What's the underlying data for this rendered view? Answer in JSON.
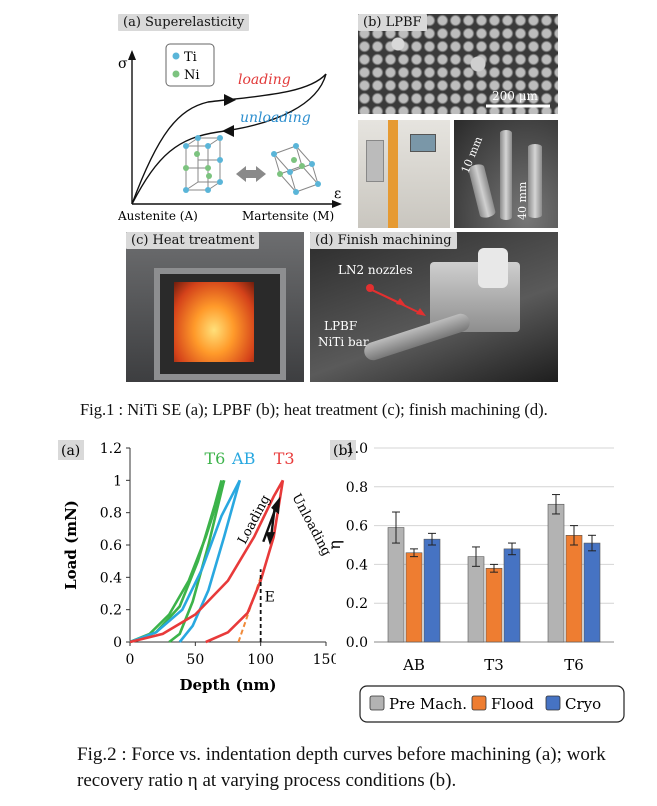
{
  "fig1": {
    "a": {
      "label": "(a) Superelasticity",
      "y_symbol": "σ",
      "x_symbol": "ε",
      "legend_ti": "Ti",
      "legend_ni": "Ni",
      "loading": "loading",
      "unloading": "unloading",
      "austenite": "Austenite (A)",
      "martensite": "Martensite (M)"
    },
    "b": {
      "label": "(b) LPBF",
      "scale": "200 μm",
      "dim1": "10 mm",
      "dim2": "40 mm"
    },
    "c": {
      "label": "(c) Heat treatment"
    },
    "d": {
      "label": "(d) Finish machining",
      "nozzles": "LN2 nozzles",
      "bar_line1": "LPBF",
      "bar_line2": "NiTi bar"
    },
    "caption": "Fig.1 : NiTi SE (a); LPBF (b); heat treatment (c); finish machining (d)."
  },
  "fig2": {
    "caption_line1": "Fig.2 : Force vs. indentation depth curves before machining (a); work",
    "caption_line2": "recovery ratio η at varying process conditions (b)."
  },
  "chart_data": [
    {
      "type": "line",
      "panel_label": "(a)",
      "xlabel": "Depth (nm)",
      "ylabel": "Load (mN)",
      "xlim": [
        0,
        150
      ],
      "ylim": [
        0,
        1.2
      ],
      "x_ticks": [
        "0",
        "50",
        "100",
        "150"
      ],
      "y_ticks": [
        "0",
        "0.2",
        "0.4",
        "0.6",
        "0.8",
        "1",
        "1.2"
      ],
      "grid": false,
      "series_labels": [
        "T6",
        "AB",
        "T3"
      ],
      "annotations": [
        "Loading",
        "Unloading",
        "E"
      ],
      "series": [
        {
          "name": "T6",
          "color": "#3cb34a",
          "loading": [
            [
              0,
              0
            ],
            [
              15,
              0.05
            ],
            [
              30,
              0.17
            ],
            [
              45,
              0.38
            ],
            [
              58,
              0.65
            ],
            [
              72,
              1.0
            ]
          ],
          "unloading": [
            [
              72,
              1.0
            ],
            [
              60,
              0.6
            ],
            [
              48,
              0.25
            ],
            [
              38,
              0.05
            ],
            [
              30,
              0
            ]
          ]
        },
        {
          "name": "T6",
          "color": "#3cb34a",
          "loading": [
            [
              0,
              0
            ],
            [
              20,
              0.06
            ],
            [
              38,
              0.22
            ],
            [
              52,
              0.5
            ],
            [
              65,
              0.85
            ],
            [
              70,
              1.0
            ]
          ],
          "unloading": []
        },
        {
          "name": "AB",
          "color": "#29a8e0",
          "loading": [
            [
              0,
              0
            ],
            [
              20,
              0.06
            ],
            [
              40,
              0.2
            ],
            [
              55,
              0.45
            ],
            [
              70,
              0.78
            ],
            [
              84,
              1.0
            ]
          ],
          "unloading": [
            [
              84,
              1.0
            ],
            [
              72,
              0.65
            ],
            [
              60,
              0.32
            ],
            [
              48,
              0.1
            ],
            [
              38,
              0
            ]
          ]
        },
        {
          "name": "T3",
          "color": "#e83a3a",
          "loading": [
            [
              0,
              0
            ],
            [
              25,
              0.05
            ],
            [
              50,
              0.17
            ],
            [
              75,
              0.38
            ],
            [
              95,
              0.65
            ],
            [
              110,
              0.9
            ],
            [
              117,
              1.0
            ]
          ],
          "unloading": [
            [
              117,
              1.0
            ],
            [
              110,
              0.65
            ],
            [
              100,
              0.38
            ],
            [
              90,
              0.18
            ],
            [
              75,
              0.06
            ],
            [
              58,
              0
            ]
          ]
        }
      ],
      "tangent_line": {
        "color": "#f08a3a",
        "points": [
          [
            83,
            0
          ],
          [
            100,
            0.4
          ]
        ]
      }
    },
    {
      "type": "bar",
      "panel_label": "(b)",
      "ylabel": "η",
      "ylim": [
        0,
        1.0
      ],
      "y_ticks": [
        "0.0",
        "0.2",
        "0.4",
        "0.6",
        "0.8",
        "1.0"
      ],
      "grid": true,
      "categories": [
        "AB",
        "T3",
        "T6"
      ],
      "legend_position": "bottom",
      "series": [
        {
          "name": "Pre Mach.",
          "color": "#b3b3b3",
          "values": [
            0.59,
            0.44,
            0.71
          ],
          "errors": [
            0.08,
            0.05,
            0.05
          ]
        },
        {
          "name": "Flood",
          "color": "#ee7d31",
          "values": [
            0.46,
            0.38,
            0.55
          ],
          "errors": [
            0.02,
            0.02,
            0.05
          ]
        },
        {
          "name": "Cryo",
          "color": "#4673c3",
          "values": [
            0.53,
            0.48,
            0.51
          ],
          "errors": [
            0.03,
            0.03,
            0.04
          ]
        }
      ]
    }
  ]
}
